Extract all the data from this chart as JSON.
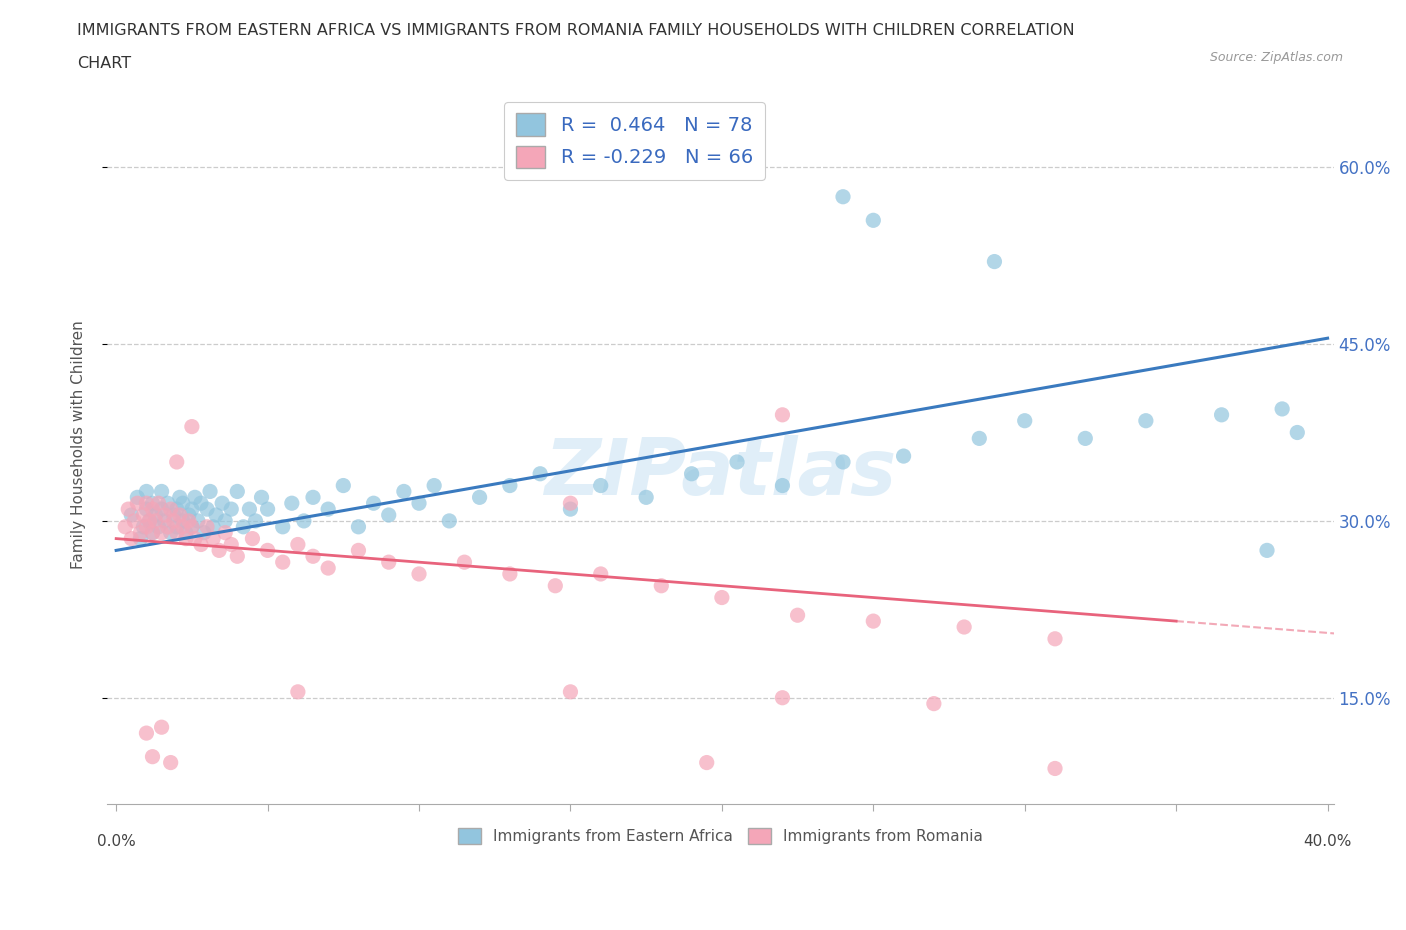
{
  "title_line1": "IMMIGRANTS FROM EASTERN AFRICA VS IMMIGRANTS FROM ROMANIA FAMILY HOUSEHOLDS WITH CHILDREN CORRELATION",
  "title_line2": "CHART",
  "source": "Source: ZipAtlas.com",
  "ylabel": "Family Households with Children",
  "yticks": [
    "15.0%",
    "30.0%",
    "45.0%",
    "60.0%"
  ],
  "ytick_vals": [
    0.15,
    0.3,
    0.45,
    0.6
  ],
  "xlim": [
    0.0,
    0.4
  ],
  "ylim": [
    0.06,
    0.67
  ],
  "watermark": "ZIPatlas",
  "color_blue": "#92c5de",
  "color_pink": "#f4a6b8",
  "color_blue_line": "#3a7abf",
  "color_pink_line": "#e8637c",
  "blue_line_x0": 0.0,
  "blue_line_y0": 0.275,
  "blue_line_x1": 0.4,
  "blue_line_y1": 0.455,
  "pink_line_solid_x0": 0.0,
  "pink_line_solid_y0": 0.285,
  "pink_line_solid_x1": 0.35,
  "pink_line_solid_y1": 0.215,
  "pink_line_dash_x0": 0.35,
  "pink_line_dash_y0": 0.215,
  "pink_line_dash_x1": 0.4,
  "pink_line_dash_y1": 0.205,
  "legend_r1": "R =  0.464   N = 78",
  "legend_r2": "R = -0.229   N = 66",
  "blue_x": [
    0.005,
    0.007,
    0.008,
    0.009,
    0.01,
    0.01,
    0.011,
    0.012,
    0.012,
    0.013,
    0.014,
    0.015,
    0.015,
    0.016,
    0.017,
    0.018,
    0.019,
    0.02,
    0.02,
    0.021,
    0.022,
    0.022,
    0.023,
    0.024,
    0.025,
    0.025,
    0.026,
    0.027,
    0.028,
    0.029,
    0.03,
    0.031,
    0.032,
    0.033,
    0.035,
    0.036,
    0.038,
    0.04,
    0.042,
    0.044,
    0.046,
    0.048,
    0.05,
    0.055,
    0.058,
    0.062,
    0.065,
    0.07,
    0.075,
    0.08,
    0.085,
    0.09,
    0.095,
    0.1,
    0.105,
    0.11,
    0.12,
    0.13,
    0.14,
    0.15,
    0.16,
    0.175,
    0.19,
    0.205,
    0.22,
    0.24,
    0.26,
    0.285,
    0.3,
    0.32,
    0.34,
    0.365,
    0.385,
    0.39,
    0.24,
    0.25,
    0.29,
    0.38
  ],
  "blue_y": [
    0.305,
    0.32,
    0.285,
    0.295,
    0.31,
    0.325,
    0.3,
    0.315,
    0.29,
    0.305,
    0.295,
    0.31,
    0.325,
    0.3,
    0.315,
    0.29,
    0.305,
    0.295,
    0.31,
    0.32,
    0.3,
    0.315,
    0.29,
    0.305,
    0.295,
    0.31,
    0.32,
    0.3,
    0.315,
    0.29,
    0.31,
    0.325,
    0.295,
    0.305,
    0.315,
    0.3,
    0.31,
    0.325,
    0.295,
    0.31,
    0.3,
    0.32,
    0.31,
    0.295,
    0.315,
    0.3,
    0.32,
    0.31,
    0.33,
    0.295,
    0.315,
    0.305,
    0.325,
    0.315,
    0.33,
    0.3,
    0.32,
    0.33,
    0.34,
    0.31,
    0.33,
    0.32,
    0.34,
    0.35,
    0.33,
    0.35,
    0.355,
    0.37,
    0.385,
    0.37,
    0.385,
    0.39,
    0.395,
    0.375,
    0.575,
    0.555,
    0.52,
    0.275
  ],
  "pink_x": [
    0.003,
    0.004,
    0.005,
    0.006,
    0.007,
    0.008,
    0.009,
    0.01,
    0.01,
    0.011,
    0.012,
    0.012,
    0.013,
    0.014,
    0.015,
    0.016,
    0.017,
    0.018,
    0.019,
    0.02,
    0.021,
    0.022,
    0.023,
    0.024,
    0.025,
    0.026,
    0.028,
    0.03,
    0.032,
    0.034,
    0.036,
    0.038,
    0.04,
    0.045,
    0.05,
    0.055,
    0.06,
    0.065,
    0.07,
    0.08,
    0.09,
    0.1,
    0.115,
    0.13,
    0.145,
    0.16,
    0.18,
    0.2,
    0.225,
    0.25,
    0.28,
    0.31,
    0.06,
    0.15,
    0.22,
    0.27,
    0.195,
    0.31,
    0.22,
    0.15,
    0.025,
    0.02,
    0.015,
    0.01,
    0.012,
    0.018
  ],
  "pink_y": [
    0.295,
    0.31,
    0.285,
    0.3,
    0.315,
    0.29,
    0.305,
    0.295,
    0.315,
    0.3,
    0.29,
    0.31,
    0.3,
    0.315,
    0.29,
    0.305,
    0.295,
    0.31,
    0.3,
    0.29,
    0.305,
    0.295,
    0.285,
    0.3,
    0.295,
    0.285,
    0.28,
    0.295,
    0.285,
    0.275,
    0.29,
    0.28,
    0.27,
    0.285,
    0.275,
    0.265,
    0.28,
    0.27,
    0.26,
    0.275,
    0.265,
    0.255,
    0.265,
    0.255,
    0.245,
    0.255,
    0.245,
    0.235,
    0.22,
    0.215,
    0.21,
    0.2,
    0.155,
    0.155,
    0.15,
    0.145,
    0.095,
    0.09,
    0.39,
    0.315,
    0.38,
    0.35,
    0.125,
    0.12,
    0.1,
    0.095
  ]
}
